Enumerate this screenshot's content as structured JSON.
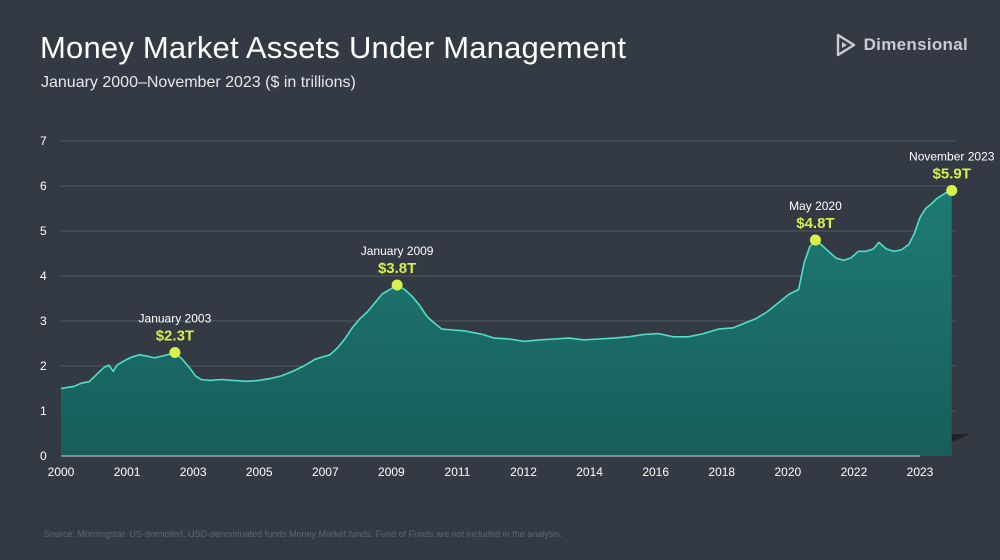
{
  "header": {
    "title": "Money Market Assets Under Management",
    "subtitle": "January 2000–November 2023 ($ in trillions)"
  },
  "brand": {
    "name": "Dimensional",
    "icon": "dimensional-logo-icon"
  },
  "footer": {
    "source": "Source: Morningstar. US-domiciled, USD-denominated funds Money Market funds. Fund of Funds are not included in the analysis."
  },
  "colors": {
    "background": "#333a43",
    "line": "#4fe0c8",
    "area_top": "#1f7a74",
    "area_bottom": "#175e5a",
    "floor": "#1f2328",
    "highlight": "#d7f04a",
    "grid": "#5c6670"
  },
  "chart_data": {
    "type": "area",
    "title": "Money Market Assets Under Management",
    "subtitle": "January 2000–November 2023 ($ in trillions)",
    "xlabel": "",
    "ylabel": "$ in trillions",
    "ylim": [
      0,
      7
    ],
    "xlim": [
      2000,
      2023
    ],
    "y_ticks": [
      "0",
      "1",
      "2",
      "3",
      "4",
      "5",
      "6",
      "7"
    ],
    "x_ticks": [
      "2000",
      "2001",
      "2003",
      "2005",
      "2007",
      "2009",
      "2011",
      "2012",
      "2014",
      "2016",
      "2018",
      "2020",
      "2022",
      "2023"
    ],
    "grid": true,
    "series": [
      {
        "name": "Money Market Assets",
        "points": [
          [
            2000.0,
            1.5
          ],
          [
            2000.15,
            1.52
          ],
          [
            2000.35,
            1.55
          ],
          [
            2000.55,
            1.62
          ],
          [
            2000.75,
            1.65
          ],
          [
            2001.0,
            1.85
          ],
          [
            2001.15,
            1.97
          ],
          [
            2001.28,
            2.02
          ],
          [
            2001.4,
            1.88
          ],
          [
            2001.5,
            2.02
          ],
          [
            2001.7,
            2.12
          ],
          [
            2001.9,
            2.2
          ],
          [
            2002.1,
            2.25
          ],
          [
            2002.3,
            2.22
          ],
          [
            2002.5,
            2.18
          ],
          [
            2002.7,
            2.22
          ],
          [
            2002.9,
            2.26
          ],
          [
            2003.05,
            2.3
          ],
          [
            2003.25,
            2.15
          ],
          [
            2003.45,
            1.95
          ],
          [
            2003.6,
            1.78
          ],
          [
            2003.75,
            1.7
          ],
          [
            2004.0,
            1.68
          ],
          [
            2004.3,
            1.7
          ],
          [
            2004.6,
            1.68
          ],
          [
            2005.0,
            1.66
          ],
          [
            2005.3,
            1.68
          ],
          [
            2005.6,
            1.72
          ],
          [
            2005.9,
            1.78
          ],
          [
            2006.2,
            1.88
          ],
          [
            2006.5,
            2.0
          ],
          [
            2006.8,
            2.15
          ],
          [
            2007.0,
            2.2
          ],
          [
            2007.2,
            2.25
          ],
          [
            2007.4,
            2.4
          ],
          [
            2007.6,
            2.6
          ],
          [
            2007.8,
            2.85
          ],
          [
            2008.0,
            3.05
          ],
          [
            2008.2,
            3.2
          ],
          [
            2008.4,
            3.4
          ],
          [
            2008.6,
            3.6
          ],
          [
            2008.85,
            3.72
          ],
          [
            2009.0,
            3.8
          ],
          [
            2009.2,
            3.7
          ],
          [
            2009.4,
            3.55
          ],
          [
            2009.6,
            3.35
          ],
          [
            2009.8,
            3.1
          ],
          [
            2010.0,
            2.95
          ],
          [
            2010.2,
            2.82
          ],
          [
            2010.5,
            2.8
          ],
          [
            2010.8,
            2.78
          ],
          [
            2011.0,
            2.75
          ],
          [
            2011.3,
            2.7
          ],
          [
            2011.6,
            2.62
          ],
          [
            2012.0,
            2.6
          ],
          [
            2012.4,
            2.55
          ],
          [
            2012.8,
            2.58
          ],
          [
            2013.2,
            2.6
          ],
          [
            2013.6,
            2.62
          ],
          [
            2014.0,
            2.58
          ],
          [
            2014.4,
            2.6
          ],
          [
            2014.8,
            2.62
          ],
          [
            2015.2,
            2.65
          ],
          [
            2015.6,
            2.7
          ],
          [
            2016.0,
            2.72
          ],
          [
            2016.4,
            2.65
          ],
          [
            2016.8,
            2.65
          ],
          [
            2017.2,
            2.72
          ],
          [
            2017.6,
            2.82
          ],
          [
            2018.0,
            2.85
          ],
          [
            2018.3,
            2.95
          ],
          [
            2018.6,
            3.05
          ],
          [
            2018.9,
            3.2
          ],
          [
            2019.2,
            3.4
          ],
          [
            2019.5,
            3.6
          ],
          [
            2019.75,
            3.7
          ],
          [
            2019.9,
            4.3
          ],
          [
            2020.05,
            4.65
          ],
          [
            2020.2,
            4.8
          ],
          [
            2020.35,
            4.7
          ],
          [
            2020.55,
            4.55
          ],
          [
            2020.75,
            4.4
          ],
          [
            2020.95,
            4.35
          ],
          [
            2021.15,
            4.4
          ],
          [
            2021.35,
            4.55
          ],
          [
            2021.55,
            4.55
          ],
          [
            2021.75,
            4.6
          ],
          [
            2021.9,
            4.75
          ],
          [
            2022.1,
            4.6
          ],
          [
            2022.3,
            4.55
          ],
          [
            2022.5,
            4.58
          ],
          [
            2022.7,
            4.7
          ],
          [
            2022.85,
            4.95
          ],
          [
            2023.0,
            5.3
          ],
          [
            2023.15,
            5.5
          ],
          [
            2023.3,
            5.6
          ],
          [
            2023.45,
            5.72
          ],
          [
            2023.6,
            5.8
          ],
          [
            2023.75,
            5.88
          ],
          [
            2023.85,
            5.9
          ]
        ]
      }
    ],
    "annotations": [
      {
        "label": "January 2003",
        "value_label": "$2.3T",
        "x": 2003.05,
        "y": 2.3
      },
      {
        "label": "January 2009",
        "value_label": "$3.8T",
        "x": 2009.0,
        "y": 3.8
      },
      {
        "label": "May 2020",
        "value_label": "$4.8T",
        "x": 2020.2,
        "y": 4.8
      },
      {
        "label": "November 2023",
        "value_label": "$5.9T",
        "x": 2023.85,
        "y": 5.9
      }
    ]
  }
}
